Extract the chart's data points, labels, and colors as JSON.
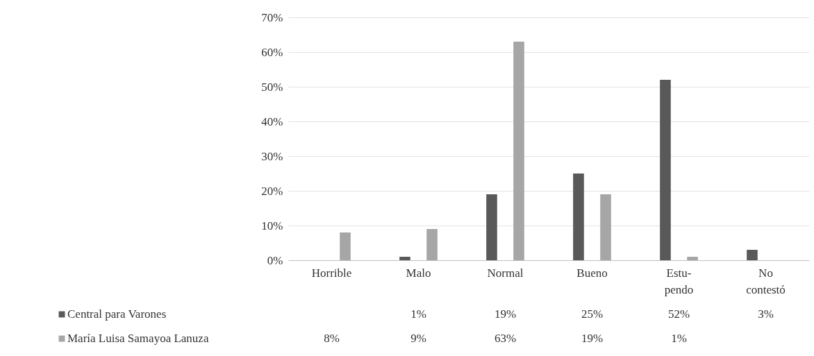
{
  "chart_data": {
    "type": "bar",
    "categories": [
      "Horrible",
      "Malo",
      "Normal",
      "Bueno",
      "Estu-pendo",
      "No contestó"
    ],
    "series": [
      {
        "name": "Central para Varones",
        "color": "#595959",
        "values": [
          null,
          1,
          19,
          25,
          52,
          3
        ],
        "value_labels": [
          null,
          "1%",
          "19%",
          "25%",
          "52%",
          "3%"
        ]
      },
      {
        "name": "María Luisa Samayoa Lanuza",
        "color": "#a6a6a6",
        "values": [
          8,
          9,
          63,
          19,
          1,
          null
        ],
        "value_labels": [
          "8%",
          "9%",
          "63%",
          "19%",
          "1%",
          null
        ]
      }
    ],
    "ylim": [
      0,
      70
    ],
    "yticks": [
      {
        "value": 0,
        "label": "0%"
      },
      {
        "value": 10,
        "label": "10%"
      },
      {
        "value": 20,
        "label": "20%"
      },
      {
        "value": 30,
        "label": "30%"
      },
      {
        "value": 40,
        "label": "40%"
      },
      {
        "value": 50,
        "label": "50%"
      },
      {
        "value": 60,
        "label": "60%"
      },
      {
        "value": 70,
        "label": "70%"
      }
    ],
    "grid": "y",
    "legend": "bottom left"
  }
}
